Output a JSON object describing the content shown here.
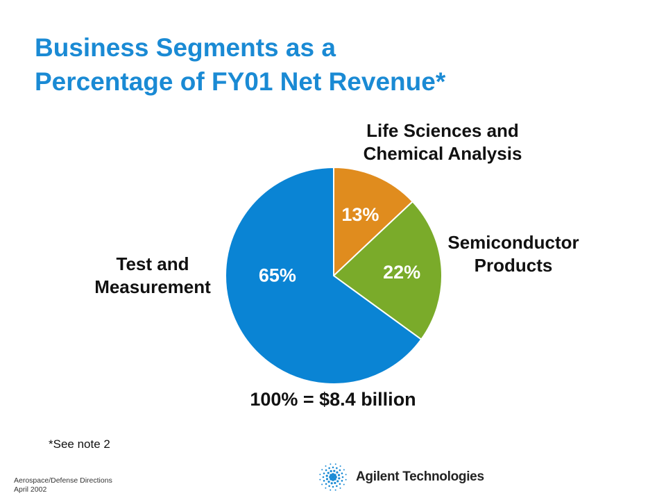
{
  "title": {
    "line1": "Business Segments as a",
    "line2": "Percentage of FY01 Net Revenue*"
  },
  "chart_data": {
    "type": "pie",
    "categories": [
      "Life Sciences and Chemical Analysis",
      "Semiconductor Products",
      "Test and Measurement"
    ],
    "label_lines": [
      [
        "Life Sciences and",
        "Chemical Analysis"
      ],
      [
        "Semiconductor",
        "Products"
      ],
      [
        "Test and",
        "Measurement"
      ]
    ],
    "values": [
      13,
      22,
      65
    ],
    "data_labels": [
      "13%",
      "22%",
      "65%"
    ],
    "colors": [
      "#e08c1e",
      "#7aab2a",
      "#0a84d4"
    ],
    "start_angle": "12 o'clock",
    "direction": "clockwise"
  },
  "total_label": "100% = $8.4 billion",
  "note": "*See note 2",
  "footer": {
    "line1": "Aerospace/Defense Directions",
    "line2": "April 2002"
  },
  "logo": {
    "text": "Agilent Technologies",
    "icon": "spark-burst-icon"
  }
}
